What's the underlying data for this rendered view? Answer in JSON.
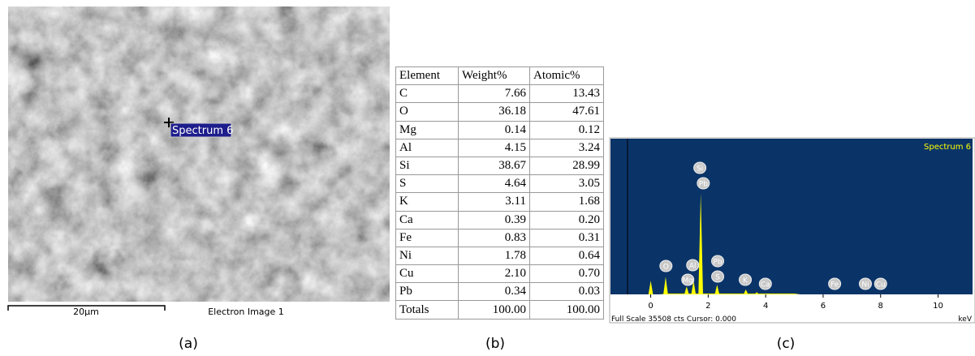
{
  "panel_a": {
    "marker_label": "Spectrum 6",
    "scale_label": "20µm",
    "image_title": "Electron Image 1",
    "caption": "(a)"
  },
  "panel_b": {
    "header": [
      "Element",
      "Weight%",
      "Atomic%"
    ],
    "rows": [
      [
        "C",
        "7.66",
        "13.43"
      ],
      [
        "O",
        "36.18",
        "47.61"
      ],
      [
        "Mg",
        "0.14",
        "0.12"
      ],
      [
        "Al",
        "4.15",
        "3.24"
      ],
      [
        "Si",
        "38.67",
        "28.99"
      ],
      [
        "S",
        "4.64",
        "3.05"
      ],
      [
        "K",
        "3.11",
        "1.68"
      ],
      [
        "Ca",
        "0.39",
        "0.20"
      ],
      [
        "Fe",
        "0.83",
        "0.31"
      ],
      [
        "Ni",
        "1.78",
        "0.64"
      ],
      [
        "Cu",
        "2.10",
        "0.70"
      ],
      [
        "Pb",
        "0.34",
        "0.03"
      ],
      [
        "Totals",
        "100.00",
        "100.00"
      ]
    ],
    "caption": "(b)"
  },
  "panel_c": {
    "title": "Spectrum 6",
    "footer": "Full Scale 35508 cts Cursor: 0.000",
    "x_unit": "keV",
    "caption": "(c)",
    "xlim": [
      -1.4,
      11.2
    ],
    "xticks": [
      0,
      2,
      4,
      6,
      8,
      10
    ],
    "ylim": [
      0,
      35508
    ],
    "peaks": [
      {
        "x": 0.0,
        "height": 3100
      },
      {
        "x": 0.52,
        "height": 4000
      },
      {
        "x": 1.25,
        "height": 1800
      },
      {
        "x": 1.49,
        "height": 3100
      },
      {
        "x": 1.74,
        "height": 23100
      },
      {
        "x": 2.31,
        "height": 2200
      },
      {
        "x": 3.31,
        "height": 1100
      },
      {
        "x": 3.69,
        "height": 500
      }
    ],
    "labels": [
      {
        "text": "Si",
        "x": 1.71
      },
      {
        "text": "Pb",
        "x": 1.83
      },
      {
        "text": "O",
        "x": 0.53
      },
      {
        "text": "Mg",
        "x": 1.29
      },
      {
        "text": "Al",
        "x": 1.46
      },
      {
        "text": "Pb",
        "x": 2.33
      },
      {
        "text": "S",
        "x": 2.33
      },
      {
        "text": "K",
        "x": 3.29
      },
      {
        "text": "Ca",
        "x": 3.99
      },
      {
        "text": "Fe",
        "x": 6.4
      },
      {
        "text": "Ni",
        "x": 7.47
      },
      {
        "text": "Cu",
        "x": 8.0
      }
    ]
  }
}
